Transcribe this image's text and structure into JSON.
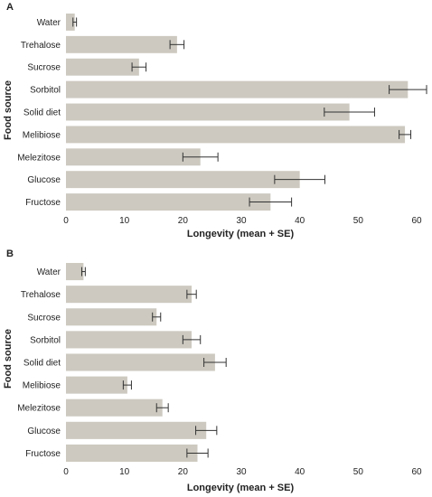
{
  "chart_data": [
    {
      "panel": "A",
      "type": "bar",
      "orientation": "horizontal",
      "categories": [
        "Water",
        "Trehalose",
        "Sucrose",
        "Sorbitol",
        "Solid diet",
        "Melibiose",
        "Melezitose",
        "Glucose",
        "Fructose"
      ],
      "values": [
        1.5,
        19,
        12.5,
        58.5,
        48.5,
        58,
        23,
        40,
        35
      ],
      "errors": [
        0.3,
        1.2,
        1.2,
        3.2,
        4.3,
        1.0,
        3.0,
        4.3,
        3.6
      ],
      "xlabel": "Longevity (mean + SE)",
      "ylabel": "Food source",
      "xticks": [
        "0",
        "10",
        "20",
        "30",
        "40",
        "50",
        "60"
      ],
      "xlim": [
        0,
        60
      ],
      "bar_color": "#cdc9c0"
    },
    {
      "panel": "B",
      "type": "bar",
      "orientation": "horizontal",
      "categories": [
        "Water",
        "Trehalose",
        "Sucrose",
        "Sorbitol",
        "Solid diet",
        "Melibiose",
        "Melezitose",
        "Glucose",
        "Fructose"
      ],
      "values": [
        3,
        21.5,
        15.5,
        21.5,
        25.5,
        10.5,
        16.5,
        24,
        22.5
      ],
      "errors": [
        0.3,
        0.8,
        0.7,
        1.5,
        1.9,
        0.7,
        1.0,
        1.8,
        1.8
      ],
      "xlabel": "Longevity (mean + SE)",
      "ylabel": "Food source",
      "xticks": [
        "0",
        "10",
        "20",
        "30",
        "40",
        "50",
        "60"
      ],
      "xlim": [
        0,
        60
      ],
      "bar_color": "#cdc9c0"
    }
  ]
}
